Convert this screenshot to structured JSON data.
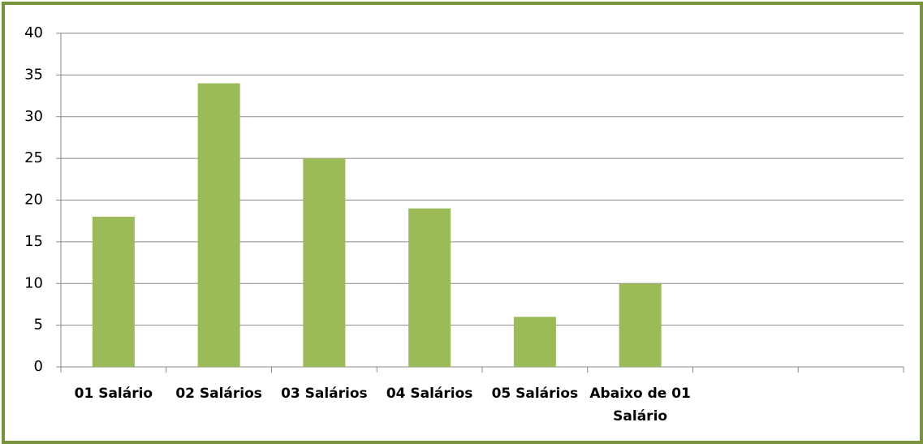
{
  "chart_data": {
    "type": "bar",
    "categories": [
      "01 Salário",
      "02 Salários",
      "03 Salários",
      "04 Salários",
      "05 Salários",
      "Abaixo de 01 Salário",
      null,
      null
    ],
    "values": [
      18,
      34,
      25,
      19,
      6,
      10,
      null,
      null
    ],
    "color": "#9bbb59",
    "ylim": [
      0,
      40
    ],
    "yticks": [
      0,
      5,
      10,
      15,
      20,
      25,
      30,
      35,
      40
    ],
    "grid": true
  }
}
